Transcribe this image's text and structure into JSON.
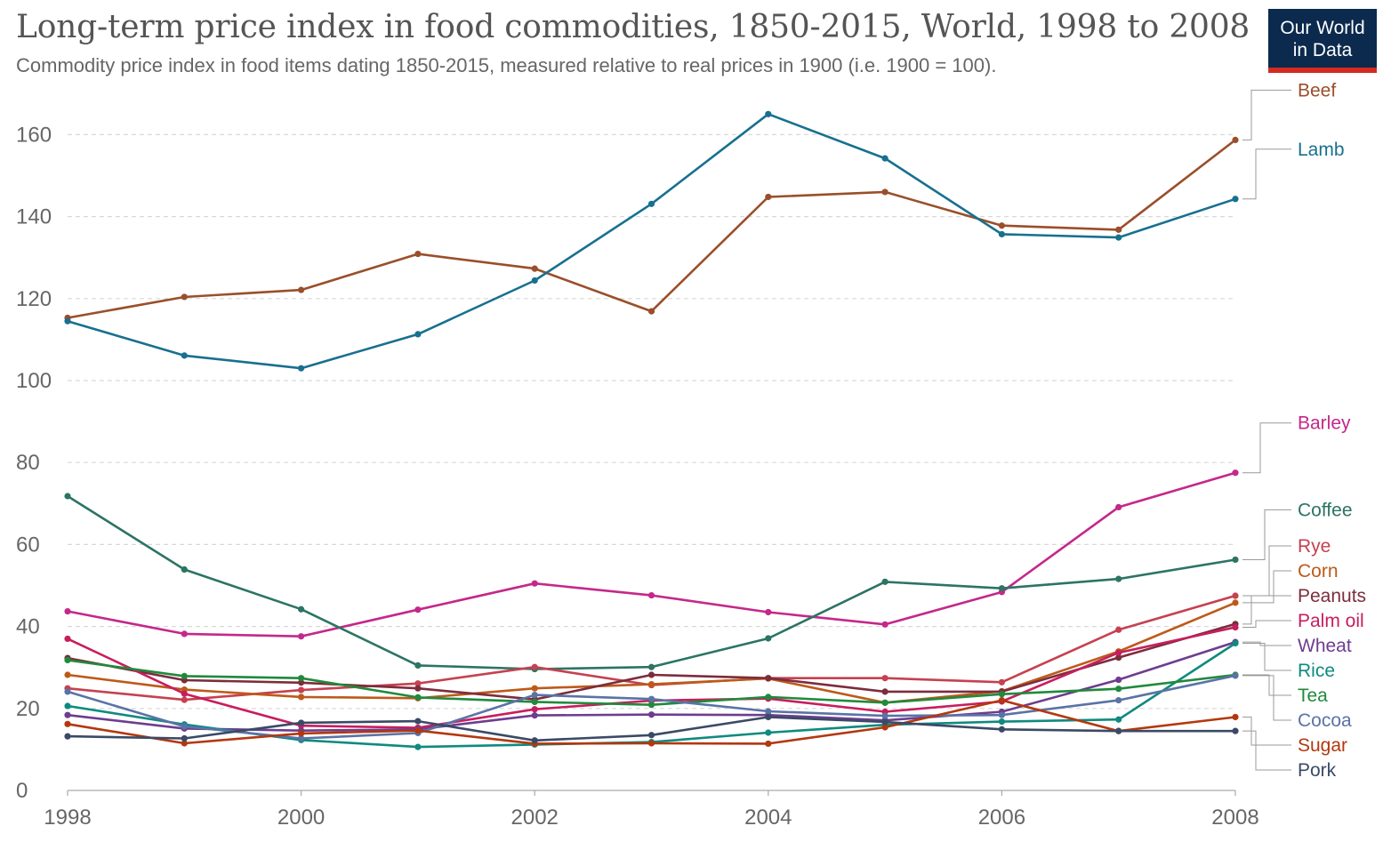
{
  "header": {
    "title": "Long-term price index in food commodities, 1850-2015, World, 1998 to 2008",
    "subtitle": "Commodity price index in food items dating 1850-2015, measured relative to real prices in 1900 (i.e. 1900 = 100).",
    "logo_line1": "Our World",
    "logo_line2": "in Data"
  },
  "chart_data": {
    "type": "line",
    "title": "Long-term price index in food commodities, 1850-2015, World, 1998 to 2008",
    "xlabel": "",
    "ylabel": "",
    "x": [
      1998,
      1999,
      2000,
      2001,
      2002,
      2003,
      2004,
      2005,
      2006,
      2007,
      2008
    ],
    "xlim": [
      1998,
      2008
    ],
    "ylim": [
      0,
      165
    ],
    "x_ticks": [
      "1998",
      "2000",
      "2002",
      "2004",
      "2006",
      "2008"
    ],
    "y_ticks": [
      "0",
      "20",
      "40",
      "60",
      "80",
      "100",
      "120",
      "140",
      "160"
    ],
    "grid": true,
    "legend": "right, labels at line ends",
    "series": [
      {
        "name": "Beef",
        "color": "#9a4f2a",
        "values": [
          115.3,
          120.4,
          122.1,
          130.9,
          127.3,
          116.9,
          144.8,
          146.0,
          137.8,
          136.8,
          158.7
        ]
      },
      {
        "name": "Lamb",
        "color": "#18708f",
        "values": [
          114.5,
          106.1,
          103.0,
          111.3,
          124.4,
          143.1,
          165.0,
          154.2,
          135.7,
          134.9,
          144.3
        ]
      },
      {
        "name": "Barley",
        "color": "#c4288a",
        "values": [
          43.7,
          38.2,
          37.6,
          44.1,
          50.5,
          47.6,
          43.5,
          40.5,
          48.4,
          69.1,
          77.5
        ]
      },
      {
        "name": "Coffee",
        "color": "#2c7464",
        "values": [
          71.8,
          53.9,
          44.2,
          30.5,
          29.6,
          30.1,
          37.1,
          50.9,
          49.3,
          51.6,
          56.3
        ]
      },
      {
        "name": "Rye",
        "color": "#c64150",
        "values": [
          24.9,
          22.1,
          24.5,
          26.1,
          30.1,
          25.7,
          27.4,
          27.4,
          26.4,
          39.2,
          47.5
        ]
      },
      {
        "name": "Corn",
        "color": "#bd5a1a",
        "values": [
          28.2,
          24.6,
          22.8,
          22.5,
          24.9,
          25.9,
          27.3,
          21.4,
          24.2,
          33.9,
          45.8
        ]
      },
      {
        "name": "Peanuts",
        "color": "#7c2d3c",
        "values": [
          32.3,
          26.9,
          26.3,
          24.9,
          22.2,
          28.2,
          27.4,
          24.1,
          24.1,
          32.4,
          40.6
        ]
      },
      {
        "name": "Palm oil",
        "color": "#c81d5d",
        "values": [
          37.0,
          23.6,
          15.8,
          15.3,
          19.8,
          21.9,
          22.4,
          19.2,
          21.7,
          33.6,
          39.8
        ]
      },
      {
        "name": "Wheat",
        "color": "#6e3d8e",
        "values": [
          18.4,
          15.1,
          14.6,
          14.9,
          18.3,
          18.5,
          18.4,
          17.1,
          19.2,
          27.0,
          36.2
        ]
      },
      {
        "name": "Rice",
        "color": "#0f8a7f",
        "values": [
          20.6,
          16.1,
          12.3,
          10.6,
          11.2,
          11.8,
          14.1,
          16.0,
          16.8,
          17.3,
          35.9
        ]
      },
      {
        "name": "Tea",
        "color": "#208a3c",
        "values": [
          31.8,
          27.9,
          27.4,
          22.7,
          21.6,
          20.9,
          22.8,
          21.4,
          23.5,
          24.8,
          28.2
        ]
      },
      {
        "name": "Cocoa",
        "color": "#5a73a6",
        "values": [
          24.1,
          15.6,
          12.7,
          14.0,
          23.3,
          22.3,
          19.3,
          18.2,
          18.4,
          22.0,
          28.0
        ]
      },
      {
        "name": "Sugar",
        "color": "#b3380f",
        "values": [
          16.2,
          11.5,
          13.9,
          14.6,
          11.4,
          11.5,
          11.4,
          15.4,
          22.0,
          14.5,
          17.9
        ]
      },
      {
        "name": "Pork",
        "color": "#3a4a66",
        "values": [
          13.2,
          12.7,
          16.5,
          16.9,
          12.2,
          13.5,
          17.9,
          16.7,
          14.9,
          14.5,
          14.5
        ]
      }
    ]
  }
}
